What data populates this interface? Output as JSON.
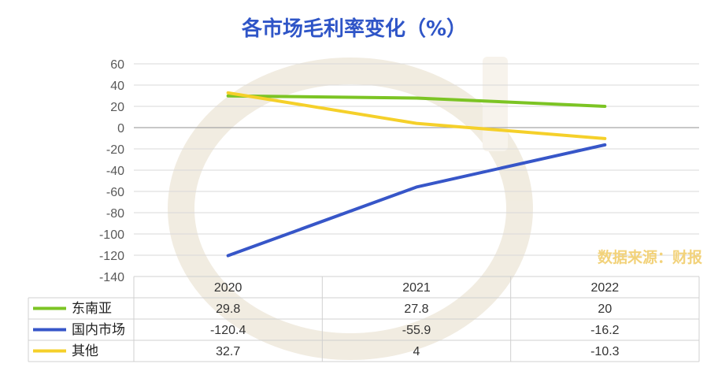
{
  "source_note": "数据来源：财报",
  "colors": {
    "title": "#2f55c7",
    "series": [
      "#7cc424",
      "#3756c8",
      "#f5d02a"
    ],
    "grid": "#d9d9d9",
    "zero_line": "#a6a6a6",
    "table_border": "#d0d0d0"
  },
  "chart_data": {
    "type": "line",
    "title": "各市场毛利率变化（%）",
    "categories": [
      "2020",
      "2021",
      "2022"
    ],
    "series": [
      {
        "name": "东南亚",
        "values": [
          29.8,
          27.8,
          20
        ]
      },
      {
        "name": "国内市场",
        "values": [
          -120.4,
          -55.9,
          -16.2
        ]
      },
      {
        "name": "其他",
        "values": [
          32.7,
          4,
          -10.3
        ]
      }
    ],
    "ylim": [
      -140,
      60
    ],
    "yticks": [
      60,
      40,
      20,
      0,
      -20,
      -40,
      -60,
      -80,
      -100,
      -120,
      -140
    ],
    "grid": true,
    "legend": "data-table"
  },
  "table_cells": [
    [
      "29.8",
      "27.8",
      "20"
    ],
    [
      "-120.4",
      "-55.9",
      "-16.2"
    ],
    [
      "32.7",
      "4",
      "-10.3"
    ]
  ]
}
